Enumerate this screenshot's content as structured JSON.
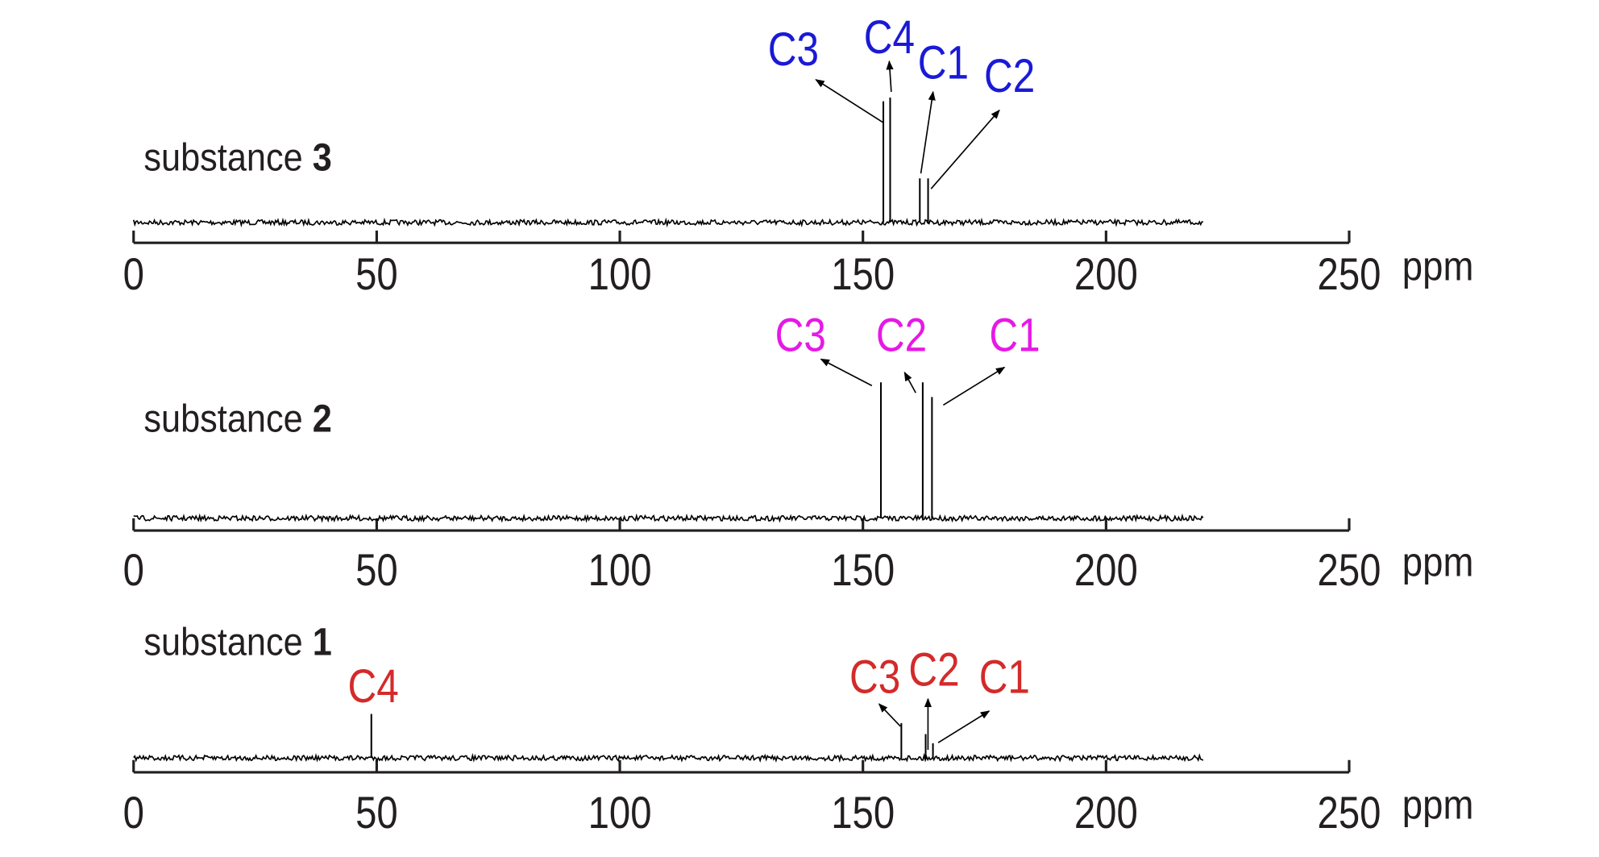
{
  "chart_data": [
    {
      "type": "spectrum",
      "title": {
        "text": "substance",
        "number": "3"
      },
      "color": "#1a1ad6",
      "xlim": [
        0,
        250
      ],
      "xticks": [
        0,
        50,
        100,
        150,
        200,
        250
      ],
      "xlabel": "ppm",
      "ylim": [
        0,
        100
      ],
      "spectrum_range": [
        0,
        220
      ],
      "peaks": [
        {
          "label": "C3",
          "x": 154.2,
          "intensity": 66
        },
        {
          "label": "C4",
          "x": 155.6,
          "intensity": 68
        },
        {
          "label": "C1",
          "x": 161.7,
          "intensity": 24
        },
        {
          "label": "C2",
          "x": 163.4,
          "intensity": 24
        }
      ]
    },
    {
      "type": "spectrum",
      "title": {
        "text": "substance",
        "number": "2"
      },
      "color": "#e619e6",
      "xlim": [
        0,
        250
      ],
      "xticks": [
        0,
        50,
        100,
        150,
        200,
        250
      ],
      "xlabel": "ppm",
      "ylim": [
        0,
        100
      ],
      "spectrum_range": [
        0,
        220
      ],
      "peaks": [
        {
          "label": "C3",
          "x": 153.7,
          "intensity": 74
        },
        {
          "label": "C2",
          "x": 162.3,
          "intensity": 74
        },
        {
          "label": "C1",
          "x": 164.2,
          "intensity": 66
        }
      ]
    },
    {
      "type": "spectrum",
      "title": {
        "text": "substance",
        "number": "1"
      },
      "color": "#d42a2a",
      "xlim": [
        0,
        250
      ],
      "xticks": [
        0,
        50,
        100,
        150,
        200,
        250
      ],
      "xlabel": "ppm",
      "ylim": [
        0,
        100
      ],
      "spectrum_range": [
        0,
        220
      ],
      "peaks": [
        {
          "label": "C4",
          "x": 48.9,
          "intensity": 24
        },
        {
          "label": "C3",
          "x": 157.9,
          "intensity": 19
        },
        {
          "label": "C2",
          "x": 162.9,
          "intensity": 13
        },
        {
          "label": "C1",
          "x": 164.4,
          "intensity": 8
        }
      ]
    }
  ]
}
